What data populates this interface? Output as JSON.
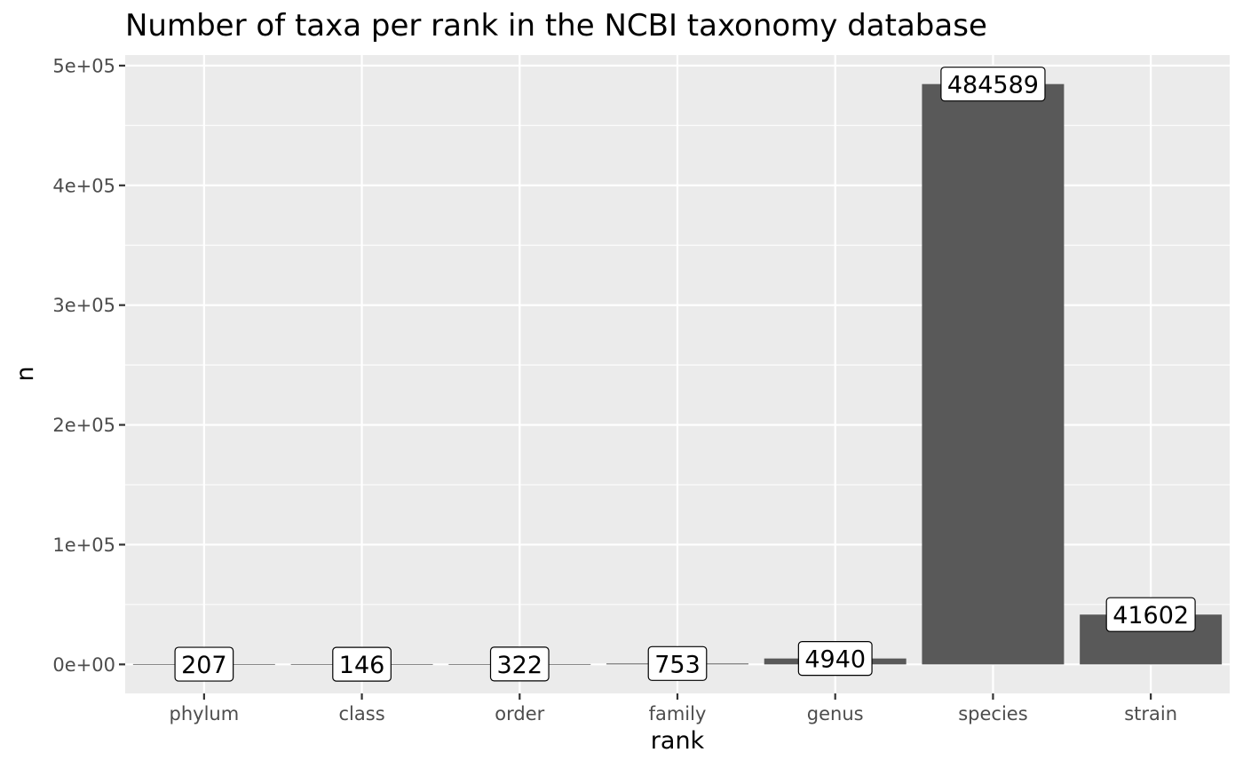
{
  "chart_data": {
    "type": "bar",
    "title": "Number of taxa per rank in the NCBI taxonomy database",
    "xlabel": "rank",
    "ylabel": "n",
    "categories": [
      "phylum",
      "class",
      "order",
      "family",
      "genus",
      "species",
      "strain"
    ],
    "values": [
      207,
      146,
      322,
      753,
      4940,
      484589,
      41602
    ],
    "data_labels": [
      "207",
      "146",
      "322",
      "753",
      "4940",
      "484589",
      "41602"
    ],
    "ylim": [
      -24230,
      508820
    ],
    "y_ticks": [
      0,
      100000,
      200000,
      300000,
      400000,
      500000
    ],
    "y_tick_labels": [
      "0e+00",
      "1e+05",
      "2e+05",
      "3e+05",
      "4e+05",
      "5e+05"
    ],
    "grid": true,
    "legend": "none"
  },
  "colors": {
    "panel_background": "#ebebeb",
    "grid_major": "#ffffff",
    "bar_fill": "#595959",
    "label_fill": "#ffffff",
    "label_border": "#000000",
    "tick_text": "#4d4d4d"
  }
}
